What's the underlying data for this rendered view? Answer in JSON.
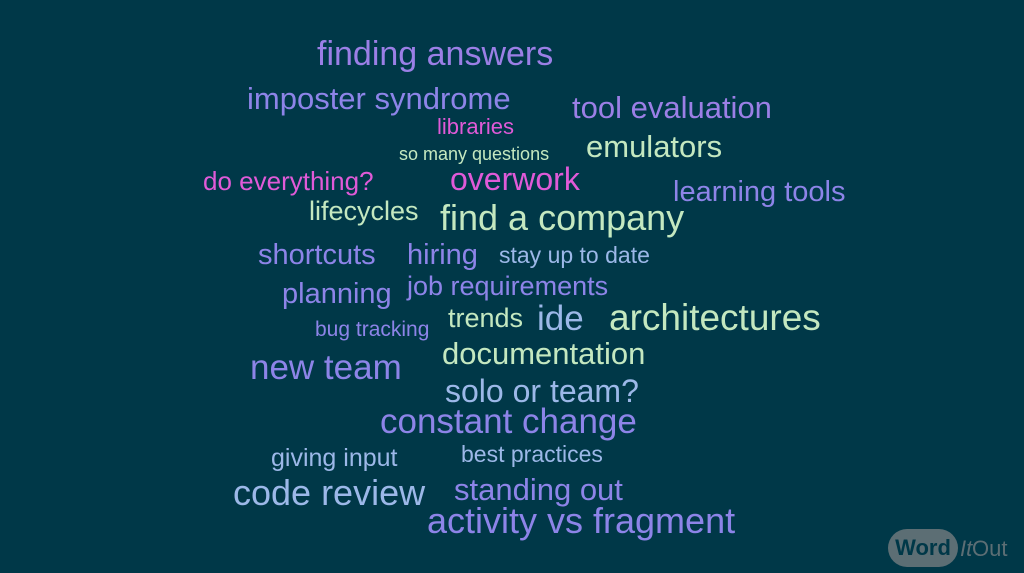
{
  "words": [
    {
      "text": "finding answers",
      "color": "#9b7fe6"
    },
    {
      "text": "imposter syndrome",
      "color": "#8d84e8"
    },
    {
      "text": "tool evaluation",
      "color": "#9b7fe6"
    },
    {
      "text": "libraries",
      "color": "#e05ad8"
    },
    {
      "text": "emulators",
      "color": "#c4e8c0"
    },
    {
      "text": "so many questions",
      "color": "#c4e8c0"
    },
    {
      "text": "do everything?",
      "color": "#e05ad8"
    },
    {
      "text": "overwork",
      "color": "#e05ad8"
    },
    {
      "text": "learning tools",
      "color": "#8d84e8"
    },
    {
      "text": "lifecycles",
      "color": "#c4e8c0"
    },
    {
      "text": "find a company",
      "color": "#c4e8c0"
    },
    {
      "text": "shortcuts",
      "color": "#8d84e8"
    },
    {
      "text": "hiring",
      "color": "#8d84e8"
    },
    {
      "text": "stay up to date",
      "color": "#9cb8e8"
    },
    {
      "text": "planning",
      "color": "#8d84e8"
    },
    {
      "text": "job requirements",
      "color": "#8d84e8"
    },
    {
      "text": "bug tracking",
      "color": "#8d84e8"
    },
    {
      "text": "trends",
      "color": "#c4e8c0"
    },
    {
      "text": "ide",
      "color": "#9cb8e8"
    },
    {
      "text": "architectures",
      "color": "#c4e8c0"
    },
    {
      "text": "documentation",
      "color": "#c4e8c0"
    },
    {
      "text": "new team",
      "color": "#8d84e8"
    },
    {
      "text": "solo or team?",
      "color": "#9cb8e8"
    },
    {
      "text": "constant change",
      "color": "#8d84e8"
    },
    {
      "text": "giving input",
      "color": "#9cb8e8"
    },
    {
      "text": "best practices",
      "color": "#9cb8e8"
    },
    {
      "text": "code review",
      "color": "#9cb8e8"
    },
    {
      "text": "standing out",
      "color": "#8d84e8"
    },
    {
      "text": "activity vs fragment",
      "color": "#8d84e8"
    }
  ],
  "logo": {
    "word": "Word",
    "it": "It",
    "out": "Out"
  }
}
